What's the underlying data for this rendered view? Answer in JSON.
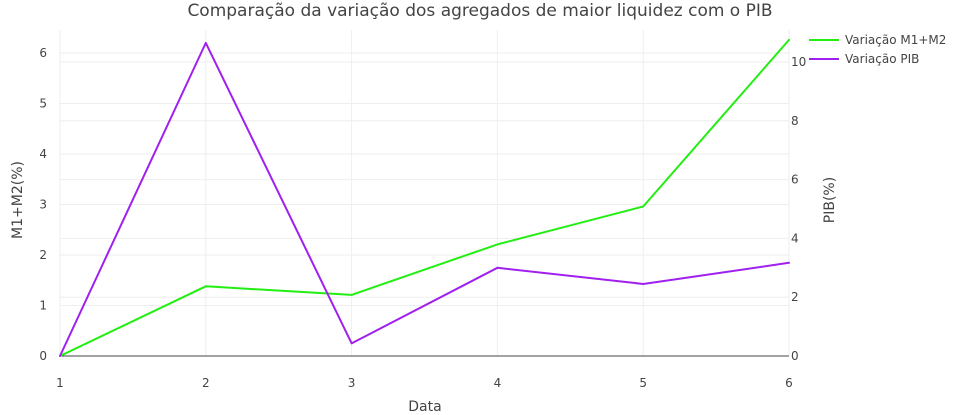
{
  "chart_data": {
    "type": "line",
    "title": "Comparação da variação dos agregados de maior liquidez com o PIB",
    "xlabel": "Data",
    "ylabel_left": "M1+M2(%)",
    "ylabel_right": "PIB(%)",
    "x": [
      1,
      2,
      3,
      4,
      5,
      6
    ],
    "x_ticks": [
      "1",
      "2",
      "3",
      "4",
      "5",
      "6"
    ],
    "xlim": [
      1,
      6
    ],
    "y_left_ticks": [
      "0",
      "1",
      "2",
      "3",
      "4",
      "5",
      "6"
    ],
    "ylim_left": [
      0,
      6.5
    ],
    "y_right_ticks": [
      "0",
      "2",
      "4",
      "6",
      "8",
      "10"
    ],
    "ylim_right": [
      0,
      11.1
    ],
    "grid": true,
    "legend_position": "top-right",
    "series": [
      {
        "name": "Variação M1+M2",
        "axis": "left",
        "color": "#22ee11",
        "values": [
          0,
          1.38,
          1.21,
          2.21,
          2.96,
          6.26
        ]
      },
      {
        "name": "Variação PIB",
        "axis": "right",
        "color": "#a020f0",
        "values": [
          0,
          10.65,
          0.43,
          3.0,
          2.45,
          3.17
        ]
      }
    ]
  }
}
